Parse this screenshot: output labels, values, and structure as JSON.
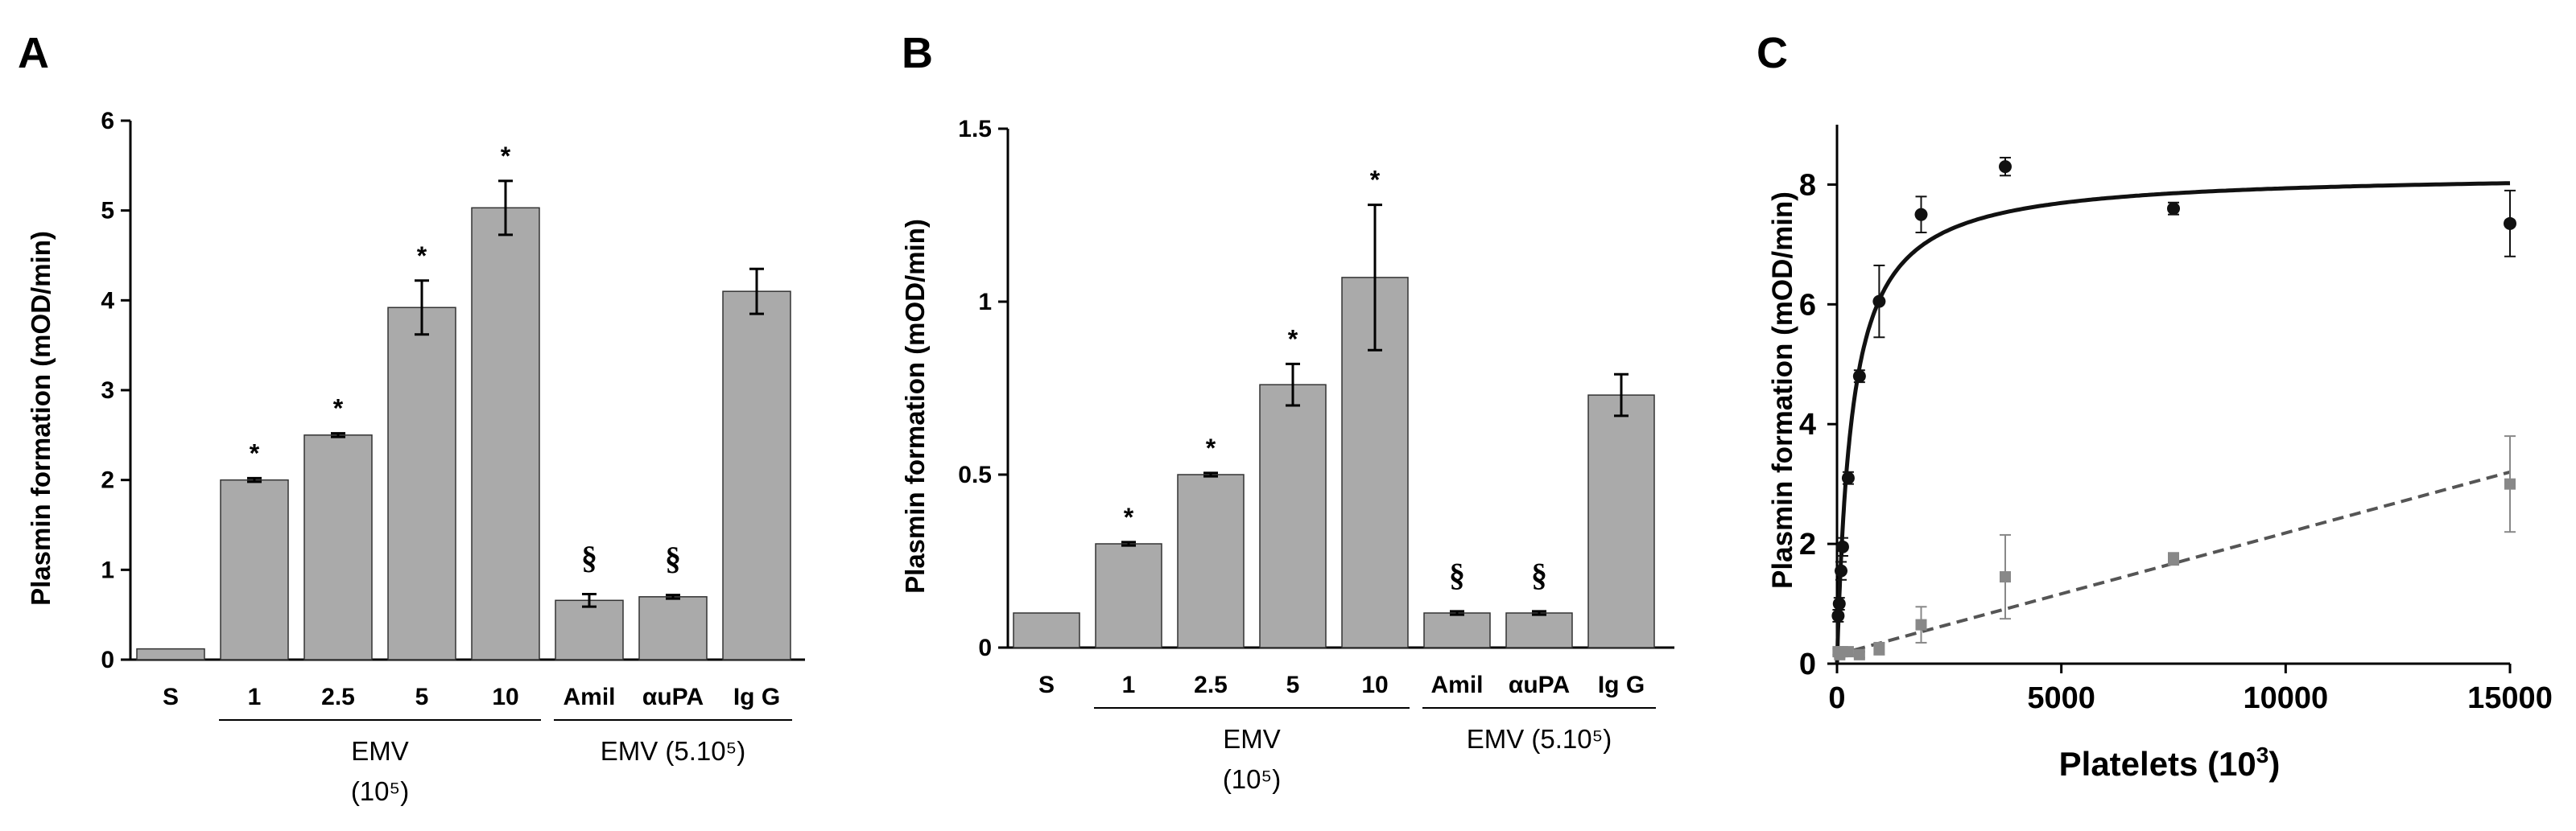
{
  "chart_data": [
    {
      "type": "bar",
      "panel": "A",
      "ylabel": "Plasmin formation (mOD/min)",
      "ylim": [
        0,
        6
      ],
      "yticks": [
        0,
        1,
        2,
        3,
        4,
        5,
        6
      ],
      "categories": [
        "S",
        "1",
        "2.5",
        "5",
        "10",
        "Amil",
        "αuPA",
        "Ig G"
      ],
      "values": [
        0.12,
        2.0,
        2.5,
        3.92,
        5.03,
        0.66,
        0.7,
        4.1
      ],
      "errors": [
        0,
        0.02,
        0.02,
        0.3,
        0.3,
        0.07,
        0.02,
        0.25
      ],
      "markers": [
        "",
        "*",
        "*",
        "*",
        "*",
        "§",
        "§",
        ""
      ],
      "groups": [
        {
          "label": "EMV",
          "sublabel": "(10⁵)",
          "from": 1,
          "to": 4
        },
        {
          "label": "EMV (5.10⁵)",
          "from": 5,
          "to": 7
        }
      ],
      "bar_color": "#aaaaaa"
    },
    {
      "type": "bar",
      "panel": "B",
      "ylabel": "Plasmin formation (mOD/min)",
      "ylim": [
        0,
        1.5
      ],
      "yticks": [
        0,
        0.5,
        1,
        1.5
      ],
      "ytick_labels": [
        "0",
        "0.5",
        "1",
        "1.5"
      ],
      "categories": [
        "S",
        "1",
        "2.5",
        "5",
        "10",
        "Amil",
        "αuPA",
        "Ig G"
      ],
      "values": [
        0.1,
        0.3,
        0.5,
        0.76,
        1.07,
        0.1,
        0.1,
        0.73
      ],
      "errors": [
        0,
        0.005,
        0.005,
        0.06,
        0.21,
        0.005,
        0.005,
        0.06
      ],
      "markers": [
        "",
        "*",
        "*",
        "*",
        "*",
        "§",
        "§",
        ""
      ],
      "groups": [
        {
          "label": "EMV",
          "sublabel": "(10⁵)",
          "from": 1,
          "to": 4
        },
        {
          "label": "EMV (5.10⁵)",
          "from": 5,
          "to": 7
        }
      ],
      "bar_color": "#aaaaaa"
    },
    {
      "type": "scatter",
      "panel": "C",
      "xlabel": "Platelets (10³)",
      "ylabel": "Plasmin formation (mOD/min)",
      "xlim": [
        0,
        15000
      ],
      "ylim": [
        0,
        9
      ],
      "xticks": [
        0,
        5000,
        10000,
        15000
      ],
      "yticks": [
        0,
        2,
        4,
        6,
        8
      ],
      "series": [
        {
          "marker": "circle",
          "color": "#111111",
          "fit": "saturation",
          "x": [
            25,
            50,
            90,
            125,
            250,
            500,
            940,
            1875,
            3750,
            7500,
            15000
          ],
          "y": [
            0.8,
            1.0,
            1.55,
            1.95,
            3.1,
            4.8,
            6.05,
            7.5,
            8.3,
            7.6,
            7.35
          ],
          "err": [
            0.1,
            0.1,
            0.15,
            0.15,
            0.1,
            0.1,
            0.6,
            0.3,
            0.15,
            0.1,
            0.55
          ]
        },
        {
          "marker": "square",
          "color": "#888888",
          "fit": "linear-dashed",
          "x": [
            25,
            60,
            120,
            250,
            500,
            940,
            1875,
            3750,
            7500,
            15000
          ],
          "y": [
            0.2,
            0.15,
            0.2,
            0.2,
            0.15,
            0.25,
            0.65,
            1.45,
            1.75,
            3.0
          ],
          "err": [
            0.05,
            0.05,
            0.05,
            0.05,
            0.05,
            0.1,
            0.3,
            0.7,
            0.1,
            0.8
          ]
        }
      ]
    }
  ]
}
